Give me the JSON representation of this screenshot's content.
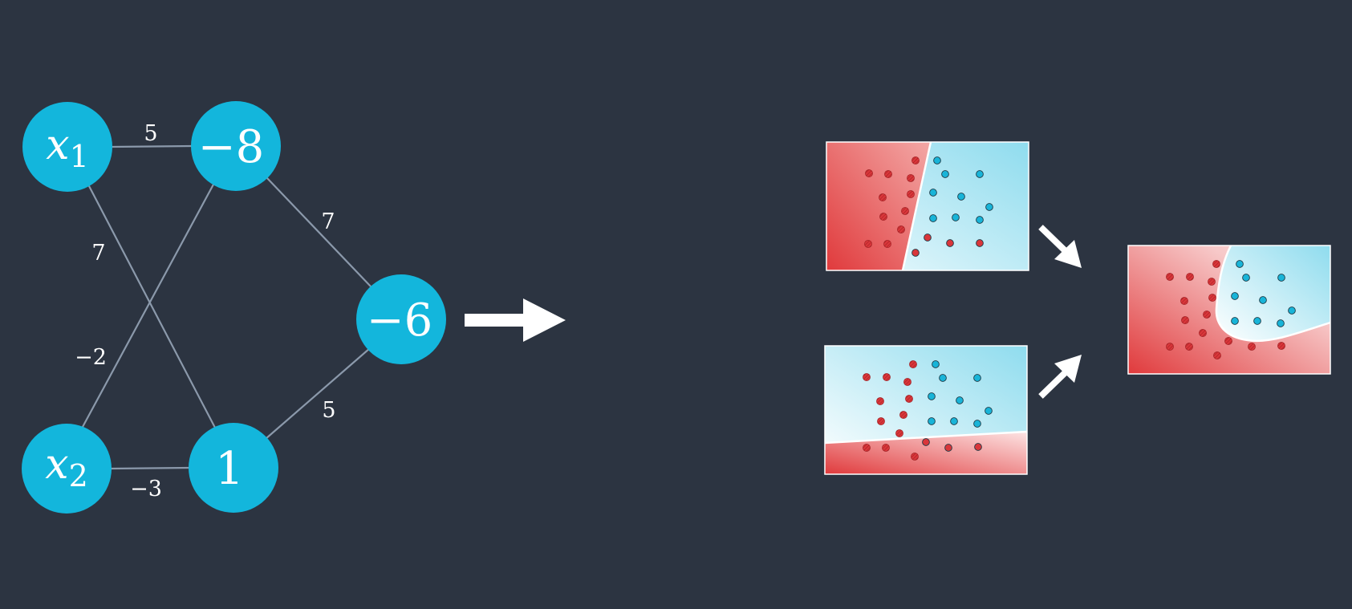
{
  "colors": {
    "background": "#2c3441",
    "node": "#13b6dc",
    "edge": "#8b99ab",
    "arrow": "#ffffff",
    "red_region": "#e03a3c",
    "red_light": "#fbdada",
    "blue_region": "#8fdcee",
    "blue_light": "#ffffff",
    "red_point": "#d9363a",
    "blue_point": "#18b4d8",
    "boundary": "#ffffff"
  },
  "network": {
    "nodes": {
      "x1": {
        "main": "x",
        "sub": "1"
      },
      "h1": {
        "text": "−8"
      },
      "x2": {
        "main": "x",
        "sub": "2"
      },
      "h2": {
        "text": "1"
      },
      "out": {
        "text": "−6"
      }
    },
    "weights": {
      "x1_h1": "5",
      "x1_h2": "7",
      "x2_h1": "−2",
      "x2_h2": "−3",
      "h1_out": "7",
      "h2_out": "5"
    }
  }
}
